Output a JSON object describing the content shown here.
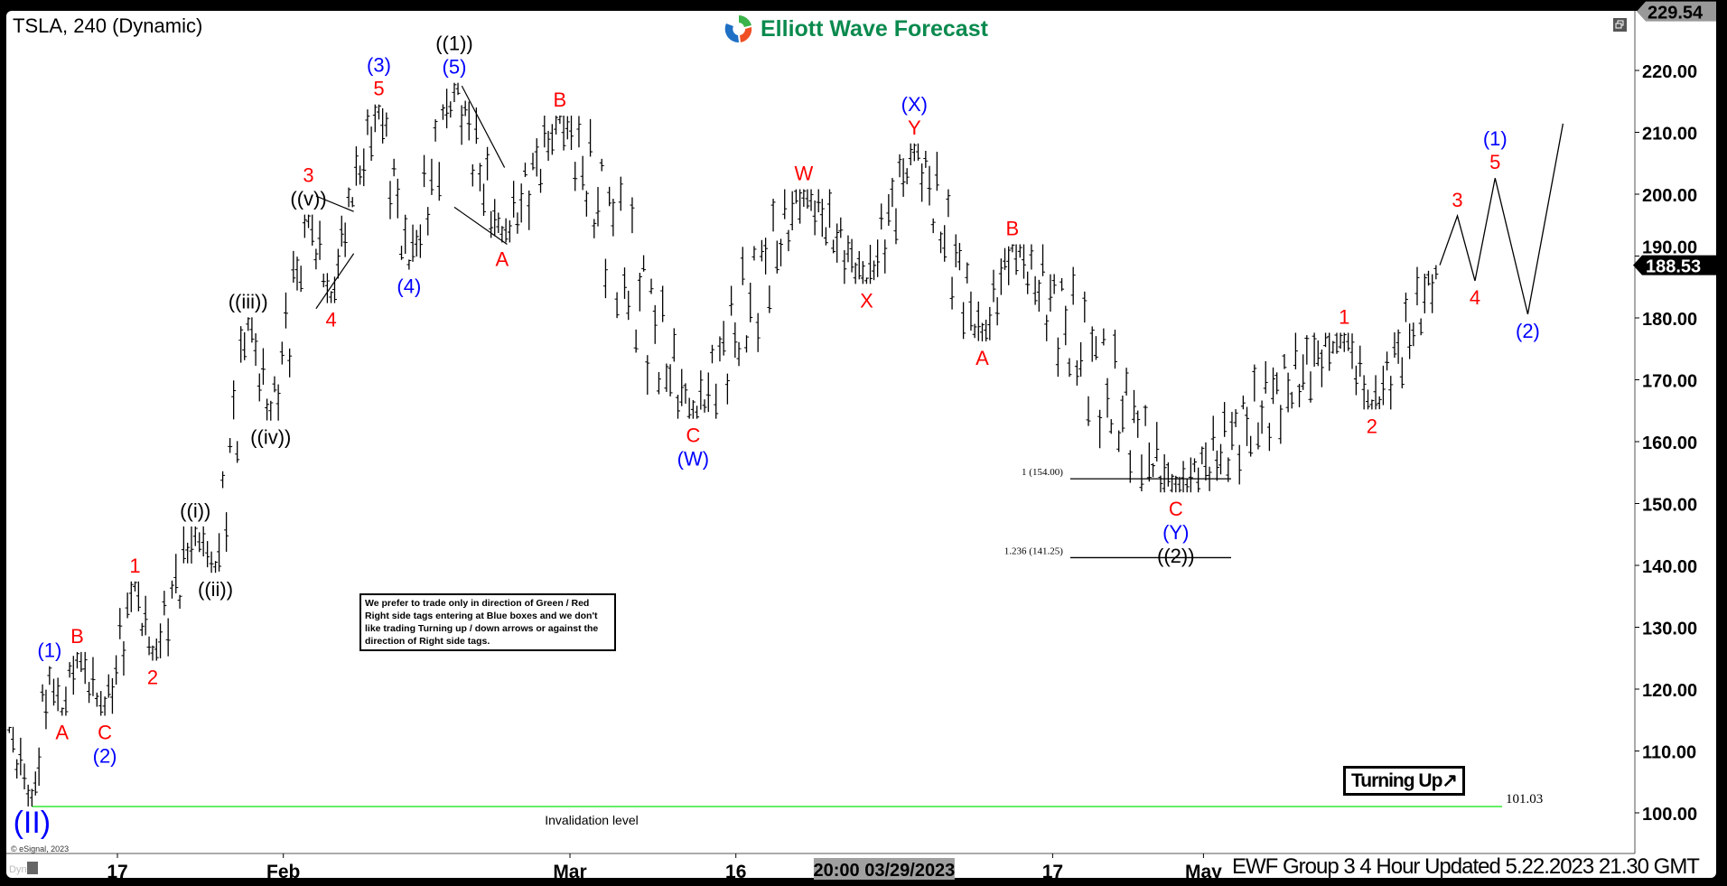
{
  "header": {
    "title": "TSLA, 240 (Dynamic)",
    "logo_text": "Elliott Wave Forecast"
  },
  "note_text": "We prefer to trade only in direction of Green / Red Right side tags entering at Blue boxes and we don't like trading Turning up / down arrows or against the direction of Right side tags.",
  "turning_label": "Turning Up",
  "turning_icon": "arrow-up-right-icon",
  "footer": "EWF Group 3 4 Hour Updated 5.22.2023 21.30 GMT",
  "copyright": "© eSignal, 2023",
  "dyn_label": "Dyn",
  "chart_data": {
    "type": "ohlc",
    "symbol": "TSLA",
    "interval": "240",
    "ylim": [
      100,
      229.54
    ],
    "y_ticks": [
      100,
      110,
      120,
      130,
      140,
      150,
      160,
      170,
      180,
      190,
      200,
      210,
      220
    ],
    "y_top_tag": "229.54",
    "last_price_tag": "188.53",
    "last_price": 188.53,
    "x_ticks": [
      {
        "label": "17",
        "date": "2023-01-17 00:00"
      },
      {
        "label": "Feb",
        "date": "2023-02-01 00:00"
      },
      {
        "label": "Mar",
        "date": "2023-03-01 00:00"
      },
      {
        "label": "16",
        "date": "2023-03-16 00:00"
      },
      {
        "label": "17",
        "date": "2023-04-17 00:00"
      },
      {
        "label": "May",
        "date": "2023-05-01 00:00"
      }
    ],
    "cursor_label": {
      "label": "20:00 03/29/2023",
      "date": "2023-03-29 20:00"
    },
    "colors": {
      "red": "#ff0000",
      "blue": "#0000ff",
      "black": "#000000",
      "invalidation": "#66ee66"
    },
    "pivots": [
      {
        "date": "2023-01-04 20:00",
        "price": 113.9,
        "labels": []
      },
      {
        "date": "2023-01-06 08:00",
        "price": 101.03,
        "pos": "below",
        "labels": [
          {
            "t": "(II)",
            "c": "blue",
            "big": true
          }
        ]
      },
      {
        "date": "2023-01-09 12:00",
        "price": 123.7,
        "pos": "above",
        "labels": [
          {
            "t": "(1)",
            "c": "blue"
          }
        ]
      },
      {
        "date": "2023-01-10 08:00",
        "price": 115.7,
        "pos": "below",
        "labels": [
          {
            "t": "A",
            "c": "red"
          }
        ]
      },
      {
        "date": "2023-01-11 08:00",
        "price": 126.0,
        "pos": "above",
        "labels": [
          {
            "t": "B",
            "c": "red"
          }
        ]
      },
      {
        "date": "2023-01-13 04:00",
        "price": 115.7,
        "pos": "below",
        "labels": [
          {
            "t": "C",
            "c": "red"
          },
          {
            "t": "(2)",
            "c": "blue"
          }
        ]
      },
      {
        "date": "2023-01-18 04:00",
        "price": 137.4,
        "pos": "above",
        "labels": [
          {
            "t": "1",
            "c": "red"
          }
        ]
      },
      {
        "date": "2023-01-19 08:00",
        "price": 124.6,
        "pos": "below",
        "labels": [
          {
            "t": "2",
            "c": "red"
          }
        ]
      },
      {
        "date": "2023-01-24 04:00",
        "price": 146.3,
        "pos": "above",
        "labels": [
          {
            "t": "((i))",
            "c": "black"
          }
        ]
      },
      {
        "date": "2023-01-25 12:00",
        "price": 138.8,
        "pos": "below",
        "labels": [
          {
            "t": "((ii))",
            "c": "black"
          }
        ]
      },
      {
        "date": "2023-01-27 16:00",
        "price": 180.1,
        "pos": "above",
        "labels": [
          {
            "t": "((iii))",
            "c": "black"
          }
        ]
      },
      {
        "date": "2023-01-31 04:00",
        "price": 163.4,
        "pos": "below",
        "labels": [
          {
            "t": "((iv))",
            "c": "black"
          }
        ]
      },
      {
        "date": "2023-02-02 16:00",
        "price": 196.7,
        "pos": "above",
        "labels": [
          {
            "t": "((v))",
            "c": "black"
          },
          {
            "t": "3",
            "c": "red"
          }
        ]
      },
      {
        "date": "2023-02-06 04:00",
        "price": 182.4,
        "pos": "below",
        "labels": [
          {
            "t": "4",
            "c": "red"
          }
        ]
      },
      {
        "date": "2023-02-07 08:00",
        "price": 197.9,
        "labels": []
      },
      {
        "date": "2023-02-09 08:00",
        "price": 214.5,
        "pos": "above",
        "labels": [
          {
            "t": "5",
            "c": "red"
          },
          {
            "t": "(3)",
            "c": "blue"
          }
        ]
      },
      {
        "date": "2023-02-13 08:00",
        "price": 187.8,
        "pos": "below",
        "labels": [
          {
            "t": "(4)",
            "c": "blue"
          }
        ]
      },
      {
        "date": "2023-02-16 08:00",
        "price": 218.0,
        "pos": "above",
        "labels": [
          {
            "t": "(5)",
            "c": "blue"
          },
          {
            "t": "((1))",
            "c": "black"
          }
        ]
      },
      {
        "date": "2023-02-22 12:00",
        "price": 192.2,
        "pos": "below",
        "labels": [
          {
            "t": "A",
            "c": "red"
          }
        ]
      },
      {
        "date": "2023-02-28 08:00",
        "price": 212.7,
        "pos": "above",
        "labels": [
          {
            "t": "B",
            "c": "red"
          }
        ]
      },
      {
        "date": "2023-03-13 04:00",
        "price": 163.7,
        "pos": "below",
        "labels": [
          {
            "t": "C",
            "c": "red"
          },
          {
            "t": "(W)",
            "c": "blue"
          }
        ]
      },
      {
        "date": "2023-03-22 12:00",
        "price": 200.8,
        "pos": "above",
        "labels": [
          {
            "t": "W",
            "c": "red"
          }
        ]
      },
      {
        "date": "2023-03-28 16:00",
        "price": 185.5,
        "pos": "below",
        "labels": [
          {
            "t": "X",
            "c": "red"
          }
        ]
      },
      {
        "date": "2023-03-31 20:00",
        "price": 208.2,
        "pos": "above",
        "labels": [
          {
            "t": "Y",
            "c": "red"
          },
          {
            "t": "(X)",
            "c": "blue"
          }
        ]
      },
      {
        "date": "2023-04-10 08:00",
        "price": 176.2,
        "pos": "below",
        "labels": [
          {
            "t": "A",
            "c": "red"
          }
        ]
      },
      {
        "date": "2023-04-12 08:00",
        "price": 191.9,
        "pos": "above",
        "labels": [
          {
            "t": "B",
            "c": "red"
          }
        ]
      },
      {
        "date": "2023-04-27 04:00",
        "price": 151.8,
        "pos": "below",
        "labels": [
          {
            "t": "C",
            "c": "red"
          },
          {
            "t": "(Y)",
            "c": "blue"
          },
          {
            "t": "((2))",
            "c": "black"
          }
        ]
      },
      {
        "date": "2023-05-12 08:00",
        "price": 177.6,
        "pos": "above",
        "labels": [
          {
            "t": "1",
            "c": "red"
          }
        ]
      },
      {
        "date": "2023-05-16 04:00",
        "price": 165.2,
        "pos": "below",
        "labels": [
          {
            "t": "2",
            "c": "red"
          }
        ]
      },
      {
        "date": "2023-05-22 16:00",
        "price": 188.53,
        "labels": []
      }
    ],
    "projection": [
      {
        "date": "2023-05-23 20:00",
        "price": 196.5,
        "pos": "above",
        "labels": [
          {
            "t": "3",
            "c": "red"
          }
        ]
      },
      {
        "date": "2023-05-25 00:00",
        "price": 186.0,
        "pos": "below",
        "labels": [
          {
            "t": "4",
            "c": "red"
          }
        ]
      },
      {
        "date": "2023-05-26 08:00",
        "price": 202.6,
        "pos": "above",
        "labels": [
          {
            "t": "5",
            "c": "red"
          },
          {
            "t": "(1)",
            "c": "blue"
          }
        ]
      },
      {
        "date": "2023-05-31 12:00",
        "price": 180.6,
        "pos": "below",
        "labels": [
          {
            "t": "(2)",
            "c": "blue"
          }
        ]
      },
      {
        "date": "2023-06-02 20:00",
        "price": 211.4,
        "labels": []
      }
    ],
    "trendlines": [
      [
        {
          "date": "2023-02-03 04:00",
          "price": 181.5
        },
        {
          "date": "2023-02-07 16:00",
          "price": 190.4
        }
      ],
      [
        {
          "date": "2023-02-03 04:00",
          "price": 199.7
        },
        {
          "date": "2023-02-07 16:00",
          "price": 197.2
        }
      ],
      [
        {
          "date": "2023-02-16 20:00",
          "price": 217.5
        },
        {
          "date": "2023-02-22 16:00",
          "price": 204.3
        }
      ],
      [
        {
          "date": "2023-02-16 08:00",
          "price": 197.9
        },
        {
          "date": "2023-02-22 20:00",
          "price": 191.9
        }
      ]
    ],
    "fib_levels": [
      {
        "label": "1 (154.00)",
        "price": 154.0,
        "from": "2023-04-18 04:00",
        "to": "2023-05-02 20:00"
      },
      {
        "label": "1.236 (141.25)",
        "price": 141.25,
        "from": "2023-04-18 04:00",
        "to": "2023-05-02 20:00"
      }
    ],
    "invalidation": {
      "label": "Invalidation level",
      "price": 101.03,
      "value_label": "101.03",
      "from": "2023-01-06 08:00",
      "to": "2023-06-09 00:00"
    }
  }
}
